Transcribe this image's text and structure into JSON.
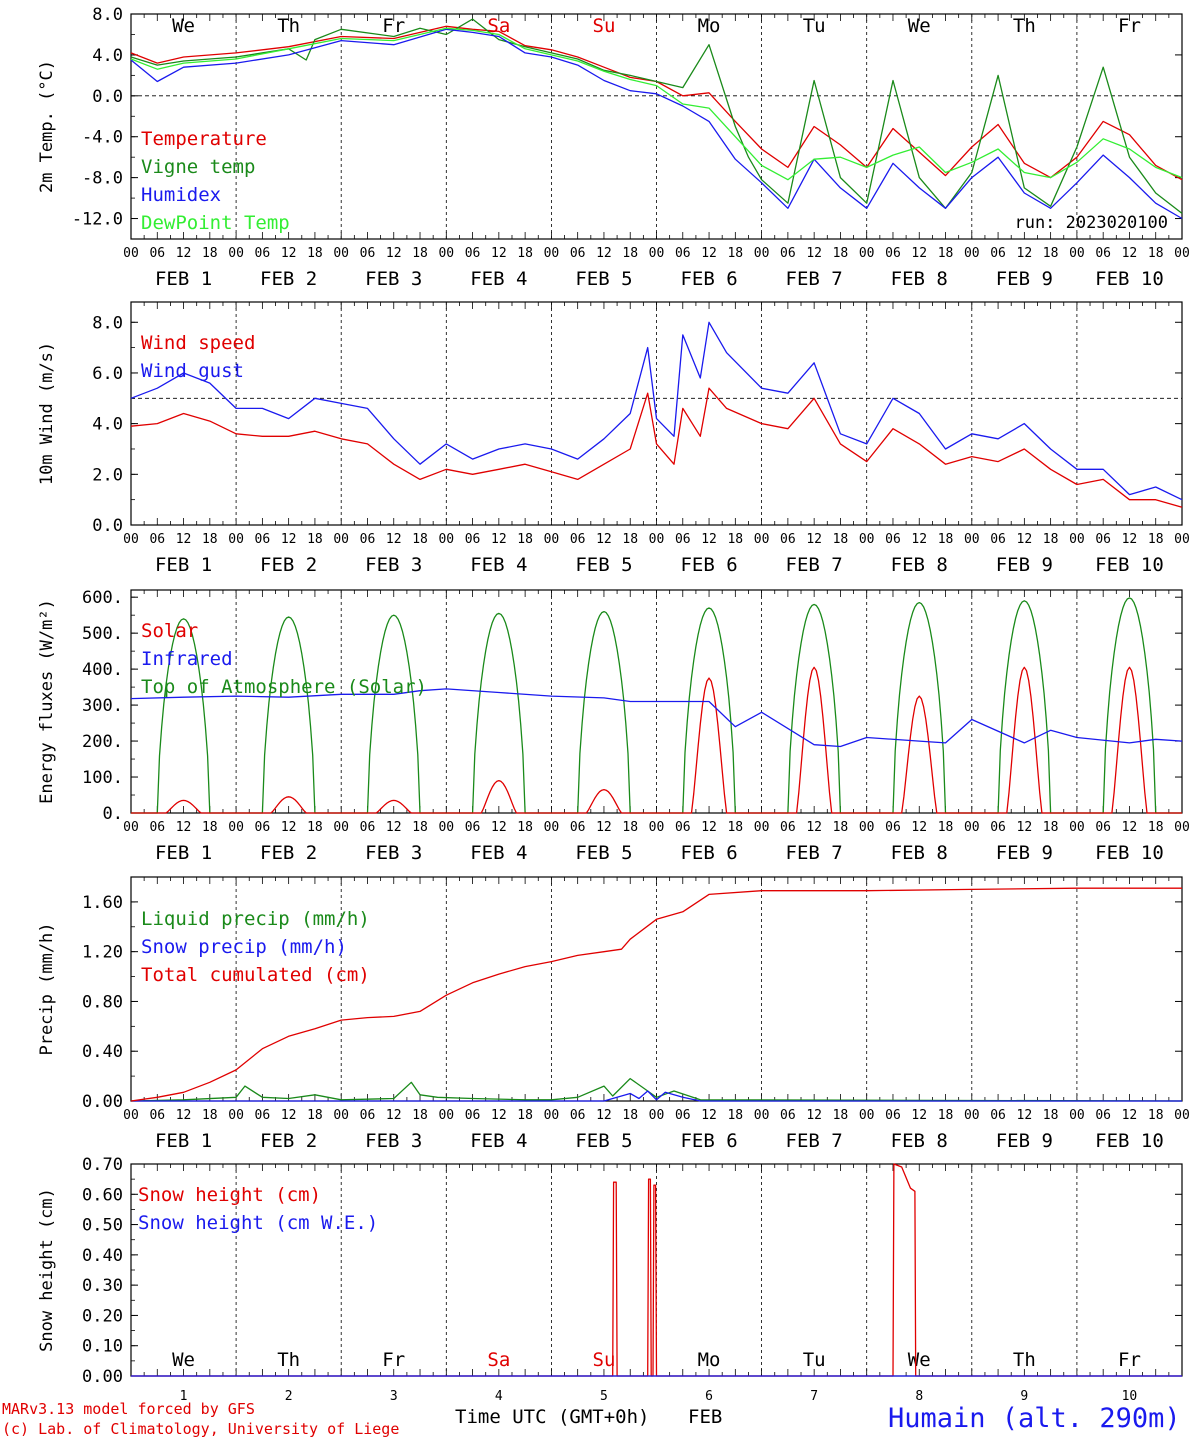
{
  "colors": {
    "red": "#e00000",
    "green": "#1a8a1a",
    "blue": "#1a1aee",
    "lightgreen": "#33ee33",
    "weekend": "#e00000",
    "axis": "#000000"
  },
  "day_labels": [
    "We",
    "Th",
    "Fr",
    "Sa",
    "Su",
    "Mo",
    "Tu",
    "We",
    "Th",
    "Fr"
  ],
  "weekend_days": [
    3,
    4
  ],
  "hour_ticks": [
    "00",
    "06",
    "12",
    "18"
  ],
  "date_labels": [
    "FEB  1",
    "FEB  2",
    "FEB  3",
    "FEB  4",
    "FEB  5",
    "FEB  6",
    "FEB  7",
    "FEB  8",
    "FEB  9",
    "FEB 10"
  ],
  "day_numbers": [
    "1",
    "2",
    "3",
    "4",
    "5",
    "6",
    "7",
    "8",
    "9",
    "10"
  ],
  "run_label": "run: 2023020100",
  "footer": {
    "model": "MARv3.13 model forced by GFS",
    "lab": "(c) Lab. of Climatology, University of Liege",
    "xlabel": "Time UTC (GMT+0h)",
    "month": "FEB",
    "station": "Humain (alt. 290m)"
  },
  "chart_data": [
    {
      "type": "line",
      "ylabel": "2m Temp. (°C)",
      "ylim": [
        -14,
        8
      ],
      "yticks": [
        "8.0",
        "4.0",
        "0.0",
        "-4.0",
        "-8.0",
        "-12.0"
      ],
      "ytick_values": [
        8,
        4,
        0,
        -4,
        -8,
        -12
      ],
      "ref_line": 0,
      "x_unit": "hours since 2023-02-01 00 UTC",
      "series": [
        {
          "name": "Temperature",
          "color": "red",
          "x": [
            0,
            6,
            12,
            24,
            36,
            48,
            60,
            72,
            78,
            84,
            90,
            96,
            102,
            108,
            114,
            120,
            126,
            132,
            138,
            144,
            150,
            156,
            162,
            168,
            174,
            180,
            186,
            192,
            198,
            204,
            210,
            216,
            222,
            228,
            234,
            240
          ],
          "y": [
            4.2,
            3.2,
            3.8,
            4.2,
            4.8,
            5.8,
            5.6,
            6.8,
            6.5,
            6.3,
            4.9,
            4.5,
            3.8,
            2.8,
            1.8,
            1.4,
            0.0,
            0.3,
            -2.5,
            -5.2,
            -7.0,
            -3.0,
            -4.8,
            -7.0,
            -3.2,
            -5.5,
            -7.8,
            -5.0,
            -2.8,
            -6.6,
            -8.0,
            -6.0,
            -2.5,
            -3.8,
            -6.8,
            -8.2
          ]
        },
        {
          "name": "Vigne temp",
          "color": "green",
          "x": [
            0,
            6,
            12,
            24,
            36,
            40,
            42,
            48,
            60,
            66,
            72,
            78,
            84,
            90,
            96,
            102,
            108,
            114,
            120,
            126,
            132,
            138,
            141,
            144,
            150,
            156,
            162,
            168,
            174,
            180,
            186,
            192,
            198,
            204,
            210,
            216,
            222,
            228,
            234,
            240
          ],
          "y": [
            3.8,
            3.0,
            3.4,
            3.8,
            4.6,
            3.5,
            5.5,
            6.5,
            5.8,
            6.6,
            6.0,
            7.5,
            5.5,
            4.8,
            4.2,
            3.6,
            2.5,
            2.0,
            1.4,
            0.8,
            5.0,
            -3.0,
            -6.0,
            -8.2,
            -10.5,
            1.5,
            -8.0,
            -10.5,
            1.5,
            -8.0,
            -11.0,
            -7.5,
            2.0,
            -9.0,
            -10.8,
            -5.0,
            2.8,
            -6.0,
            -9.5,
            -11.5
          ]
        },
        {
          "name": "Humidex",
          "color": "blue",
          "x": [
            0,
            6,
            12,
            24,
            36,
            48,
            60,
            72,
            78,
            84,
            90,
            96,
            102,
            108,
            114,
            120,
            126,
            132,
            138,
            144,
            150,
            156,
            162,
            168,
            174,
            180,
            186,
            192,
            198,
            204,
            210,
            216,
            222,
            228,
            234,
            240
          ],
          "y": [
            3.5,
            1.4,
            2.8,
            3.2,
            4.0,
            5.4,
            5.0,
            6.5,
            6.2,
            5.8,
            4.2,
            3.8,
            3.0,
            1.5,
            0.5,
            0.2,
            -1.0,
            -2.5,
            -6.2,
            -8.5,
            -11.0,
            -6.2,
            -9.0,
            -11.0,
            -6.6,
            -9.0,
            -11.0,
            -8.0,
            -6.0,
            -9.5,
            -11.0,
            -8.5,
            -5.8,
            -8.0,
            -10.5,
            -12.0
          ]
        },
        {
          "name": "DewPoint Temp",
          "color": "lightgreen",
          "x": [
            0,
            6,
            12,
            24,
            36,
            48,
            60,
            72,
            78,
            84,
            90,
            96,
            102,
            108,
            114,
            120,
            126,
            132,
            138,
            144,
            150,
            156,
            162,
            168,
            174,
            180,
            186,
            192,
            198,
            204,
            210,
            216,
            222,
            228,
            234,
            240
          ],
          "y": [
            3.6,
            2.6,
            3.2,
            3.6,
            4.6,
            5.6,
            5.4,
            6.6,
            6.4,
            6.0,
            4.6,
            4.0,
            3.4,
            2.4,
            1.6,
            1.0,
            -0.8,
            -1.2,
            -4.0,
            -6.8,
            -8.2,
            -6.2,
            -6.0,
            -7.0,
            -5.8,
            -5.0,
            -7.5,
            -6.5,
            -5.2,
            -7.5,
            -8.0,
            -6.5,
            -4.2,
            -5.2,
            -7.0,
            -8.0
          ]
        }
      ],
      "legend": [
        "Temperature",
        "Vigne temp",
        "Humidex",
        "DewPoint Temp"
      ]
    },
    {
      "type": "line",
      "ylabel": "10m Wind (m/s)",
      "ylim": [
        0,
        8.8
      ],
      "yticks": [
        "8.0",
        "6.0",
        "4.0",
        "2.0",
        "0.0"
      ],
      "ytick_values": [
        8,
        6,
        4,
        2,
        0
      ],
      "ref_line": 5,
      "series": [
        {
          "name": "Wind speed",
          "color": "red",
          "x": [
            0,
            6,
            12,
            18,
            24,
            30,
            36,
            42,
            48,
            54,
            60,
            66,
            72,
            78,
            84,
            90,
            96,
            102,
            108,
            114,
            118,
            120,
            124,
            126,
            130,
            132,
            136,
            144,
            150,
            156,
            162,
            168,
            174,
            180,
            186,
            192,
            198,
            204,
            210,
            216,
            222,
            228,
            234,
            240
          ],
          "y": [
            3.9,
            4.0,
            4.4,
            4.1,
            3.6,
            3.5,
            3.5,
            3.7,
            3.4,
            3.2,
            2.4,
            1.8,
            2.2,
            2.0,
            2.2,
            2.4,
            2.1,
            1.8,
            2.4,
            3.0,
            5.2,
            3.2,
            2.4,
            4.6,
            3.5,
            5.4,
            4.6,
            4.0,
            3.8,
            5.0,
            3.2,
            2.5,
            3.8,
            3.2,
            2.4,
            2.7,
            2.5,
            3.0,
            2.2,
            1.6,
            1.8,
            1.0,
            1.0,
            0.7
          ]
        },
        {
          "name": "Wind gust",
          "color": "blue",
          "x": [
            0,
            6,
            12,
            18,
            24,
            30,
            36,
            42,
            48,
            54,
            60,
            66,
            72,
            78,
            84,
            90,
            96,
            102,
            108,
            114,
            118,
            120,
            124,
            126,
            130,
            132,
            136,
            144,
            150,
            156,
            162,
            168,
            174,
            180,
            186,
            192,
            198,
            204,
            210,
            216,
            222,
            228,
            234,
            240
          ],
          "y": [
            5.0,
            5.4,
            6.0,
            5.6,
            4.6,
            4.6,
            4.2,
            5.0,
            4.8,
            4.6,
            3.4,
            2.4,
            3.2,
            2.6,
            3.0,
            3.2,
            3.0,
            2.6,
            3.4,
            4.4,
            7.0,
            4.2,
            3.5,
            7.5,
            5.8,
            8.0,
            6.8,
            5.4,
            5.2,
            6.4,
            3.6,
            3.2,
            5.0,
            4.4,
            3.0,
            3.6,
            3.4,
            4.0,
            3.0,
            2.2,
            2.2,
            1.2,
            1.5,
            1.0
          ]
        }
      ],
      "legend": [
        "Wind speed",
        "Wind gust"
      ]
    },
    {
      "type": "line",
      "ylabel": "Energy fluxes (W/m²)",
      "ylim": [
        0,
        620
      ],
      "yticks": [
        "600.",
        "500.",
        "400.",
        "300.",
        "200.",
        "100.",
        "0."
      ],
      "ytick_values": [
        600,
        500,
        400,
        300,
        200,
        100,
        0
      ],
      "toa_peaks": [
        540,
        545,
        550,
        555,
        560,
        570,
        580,
        585,
        590,
        598
      ],
      "solar_peaks": [
        35,
        45,
        35,
        90,
        65,
        375,
        405,
        325,
        405,
        405
      ],
      "series": [
        {
          "name": "Solar",
          "color": "red"
        },
        {
          "name": "Infrared",
          "color": "blue",
          "x": [
            0,
            12,
            24,
            36,
            48,
            60,
            66,
            72,
            84,
            96,
            108,
            114,
            120,
            132,
            138,
            144,
            156,
            162,
            168,
            180,
            186,
            192,
            204,
            210,
            216,
            228,
            234,
            240
          ],
          "y": [
            318,
            322,
            325,
            322,
            330,
            330,
            340,
            345,
            335,
            325,
            320,
            310,
            310,
            310,
            240,
            280,
            190,
            185,
            210,
            200,
            195,
            260,
            195,
            230,
            210,
            195,
            205,
            200
          ]
        },
        {
          "name": "Top of Atmosphere (Solar)",
          "color": "green"
        }
      ],
      "legend": [
        "Solar",
        "Infrared",
        "Top of Atmosphere (Solar)"
      ]
    },
    {
      "type": "line",
      "ylabel": "Precip (mm/h)",
      "ylim": [
        0,
        1.8
      ],
      "yticks": [
        "1.60",
        "1.20",
        "0.80",
        "0.40",
        "0.00"
      ],
      "ytick_values": [
        1.6,
        1.2,
        0.8,
        0.4,
        0.0
      ],
      "series": [
        {
          "name": "Liquid precip (mm/h)",
          "color": "green",
          "x": [
            0,
            12,
            24,
            26,
            30,
            36,
            42,
            48,
            60,
            64,
            66,
            70,
            78,
            90,
            96,
            102,
            108,
            110,
            114,
            118,
            120,
            124,
            130,
            240
          ],
          "y": [
            0.0,
            0.01,
            0.03,
            0.12,
            0.03,
            0.02,
            0.05,
            0.01,
            0.02,
            0.15,
            0.05,
            0.03,
            0.02,
            0.01,
            0.01,
            0.03,
            0.12,
            0.04,
            0.18,
            0.08,
            0.03,
            0.08,
            0.01,
            0.0
          ]
        },
        {
          "name": "Snow precip (mm/h)",
          "color": "blue",
          "x": [
            0,
            24,
            108,
            114,
            116,
            118,
            120,
            122,
            126,
            130,
            240
          ],
          "y": [
            0.0,
            0.0,
            0.0,
            0.06,
            0.02,
            0.08,
            0.01,
            0.07,
            0.03,
            0.0,
            0.0
          ]
        },
        {
          "name": "Total cumulated (cm)",
          "color": "red",
          "x": [
            0,
            6,
            12,
            18,
            24,
            30,
            36,
            42,
            48,
            54,
            60,
            66,
            72,
            78,
            84,
            90,
            96,
            102,
            108,
            112,
            114,
            120,
            126,
            132,
            144,
            168,
            192,
            216,
            240
          ],
          "y": [
            0.0,
            0.03,
            0.07,
            0.15,
            0.25,
            0.42,
            0.52,
            0.58,
            0.65,
            0.67,
            0.68,
            0.72,
            0.85,
            0.95,
            1.02,
            1.08,
            1.12,
            1.17,
            1.2,
            1.22,
            1.3,
            1.46,
            1.52,
            1.66,
            1.69,
            1.69,
            1.7,
            1.71,
            1.71
          ]
        }
      ],
      "legend": [
        "Liquid precip (mm/h)",
        "Snow precip (mm/h)",
        "Total cumulated (cm)"
      ]
    },
    {
      "type": "line",
      "ylabel": "Snow height (cm)",
      "ylim": [
        0,
        0.7
      ],
      "yticks": [
        "0.70",
        "0.60",
        "0.50",
        "0.40",
        "0.30",
        "0.20",
        "0.10",
        "0.00"
      ],
      "ytick_values": [
        0.7,
        0.6,
        0.5,
        0.4,
        0.3,
        0.2,
        0.1,
        0.0
      ],
      "series": [
        {
          "name": "Snow height (cm)",
          "color": "red",
          "x": [
            0,
            110,
            110.2,
            110.8,
            111,
            118,
            118.2,
            118.6,
            118.8,
            119.2,
            119.4,
            119.8,
            120,
            174,
            174.2,
            176,
            178,
            179,
            179.2,
            240
          ],
          "y": [
            0,
            0,
            0.64,
            0.64,
            0,
            0,
            0.65,
            0.65,
            0,
            0,
            0.63,
            0.63,
            0,
            0,
            0.7,
            0.69,
            0.62,
            0.61,
            0,
            0
          ]
        },
        {
          "name": "Snow height (cm W.E.)",
          "color": "blue",
          "x": [
            0,
            240
          ],
          "y": [
            0,
            0
          ]
        }
      ],
      "legend": [
        "Snow height (cm)",
        "Snow height (cm W.E.)"
      ]
    }
  ]
}
